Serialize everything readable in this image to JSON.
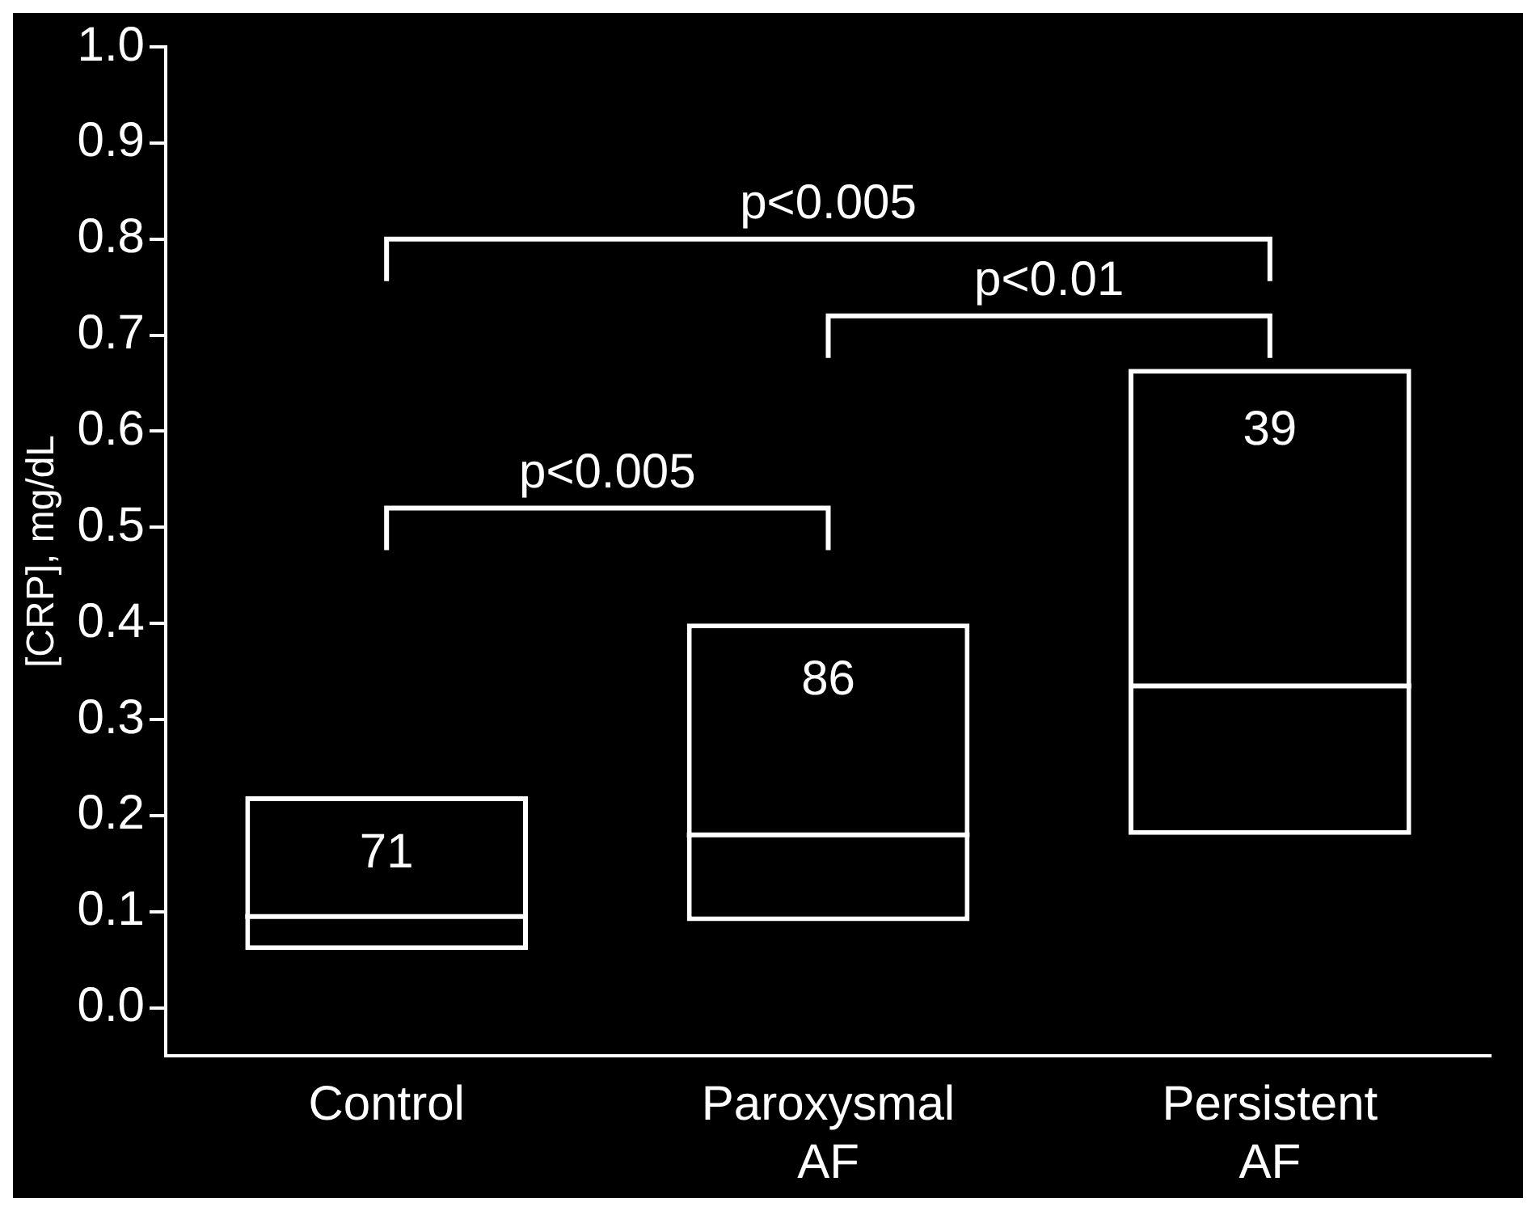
{
  "chart_data": {
    "type": "box",
    "categories": [
      "Control",
      "Paroxysmal AF",
      "Persistent AF"
    ],
    "ylabel": "[CRP], mg/dL",
    "boxes": [
      {
        "low": 0.06,
        "q1": 0.06,
        "median": 0.095,
        "q3": 0.22,
        "high": 0.22
      },
      {
        "low": 0.09,
        "q1": 0.09,
        "median": 0.18,
        "q3": 0.4,
        "high": 0.4
      },
      {
        "low": 0.18,
        "q1": 0.18,
        "median": 0.335,
        "q3": 0.665,
        "high": 0.665
      }
    ],
    "color": "#ffffff",
    "ylim": [
      -0.05,
      1.0
    ],
    "yticks": [
      {
        "value": 0,
        "label": "0.0"
      },
      0.1,
      0.2,
      0.3,
      0.4,
      0.5,
      0.6,
      0.7,
      0.8,
      0.9,
      {
        "value": 1,
        "label": "1.0"
      }
    ],
    "annotations": [
      "71",
      "86",
      "39",
      "p<0.005",
      "p<0.01",
      "p<0.005"
    ],
    "grid": false,
    "legend": false
  }
}
